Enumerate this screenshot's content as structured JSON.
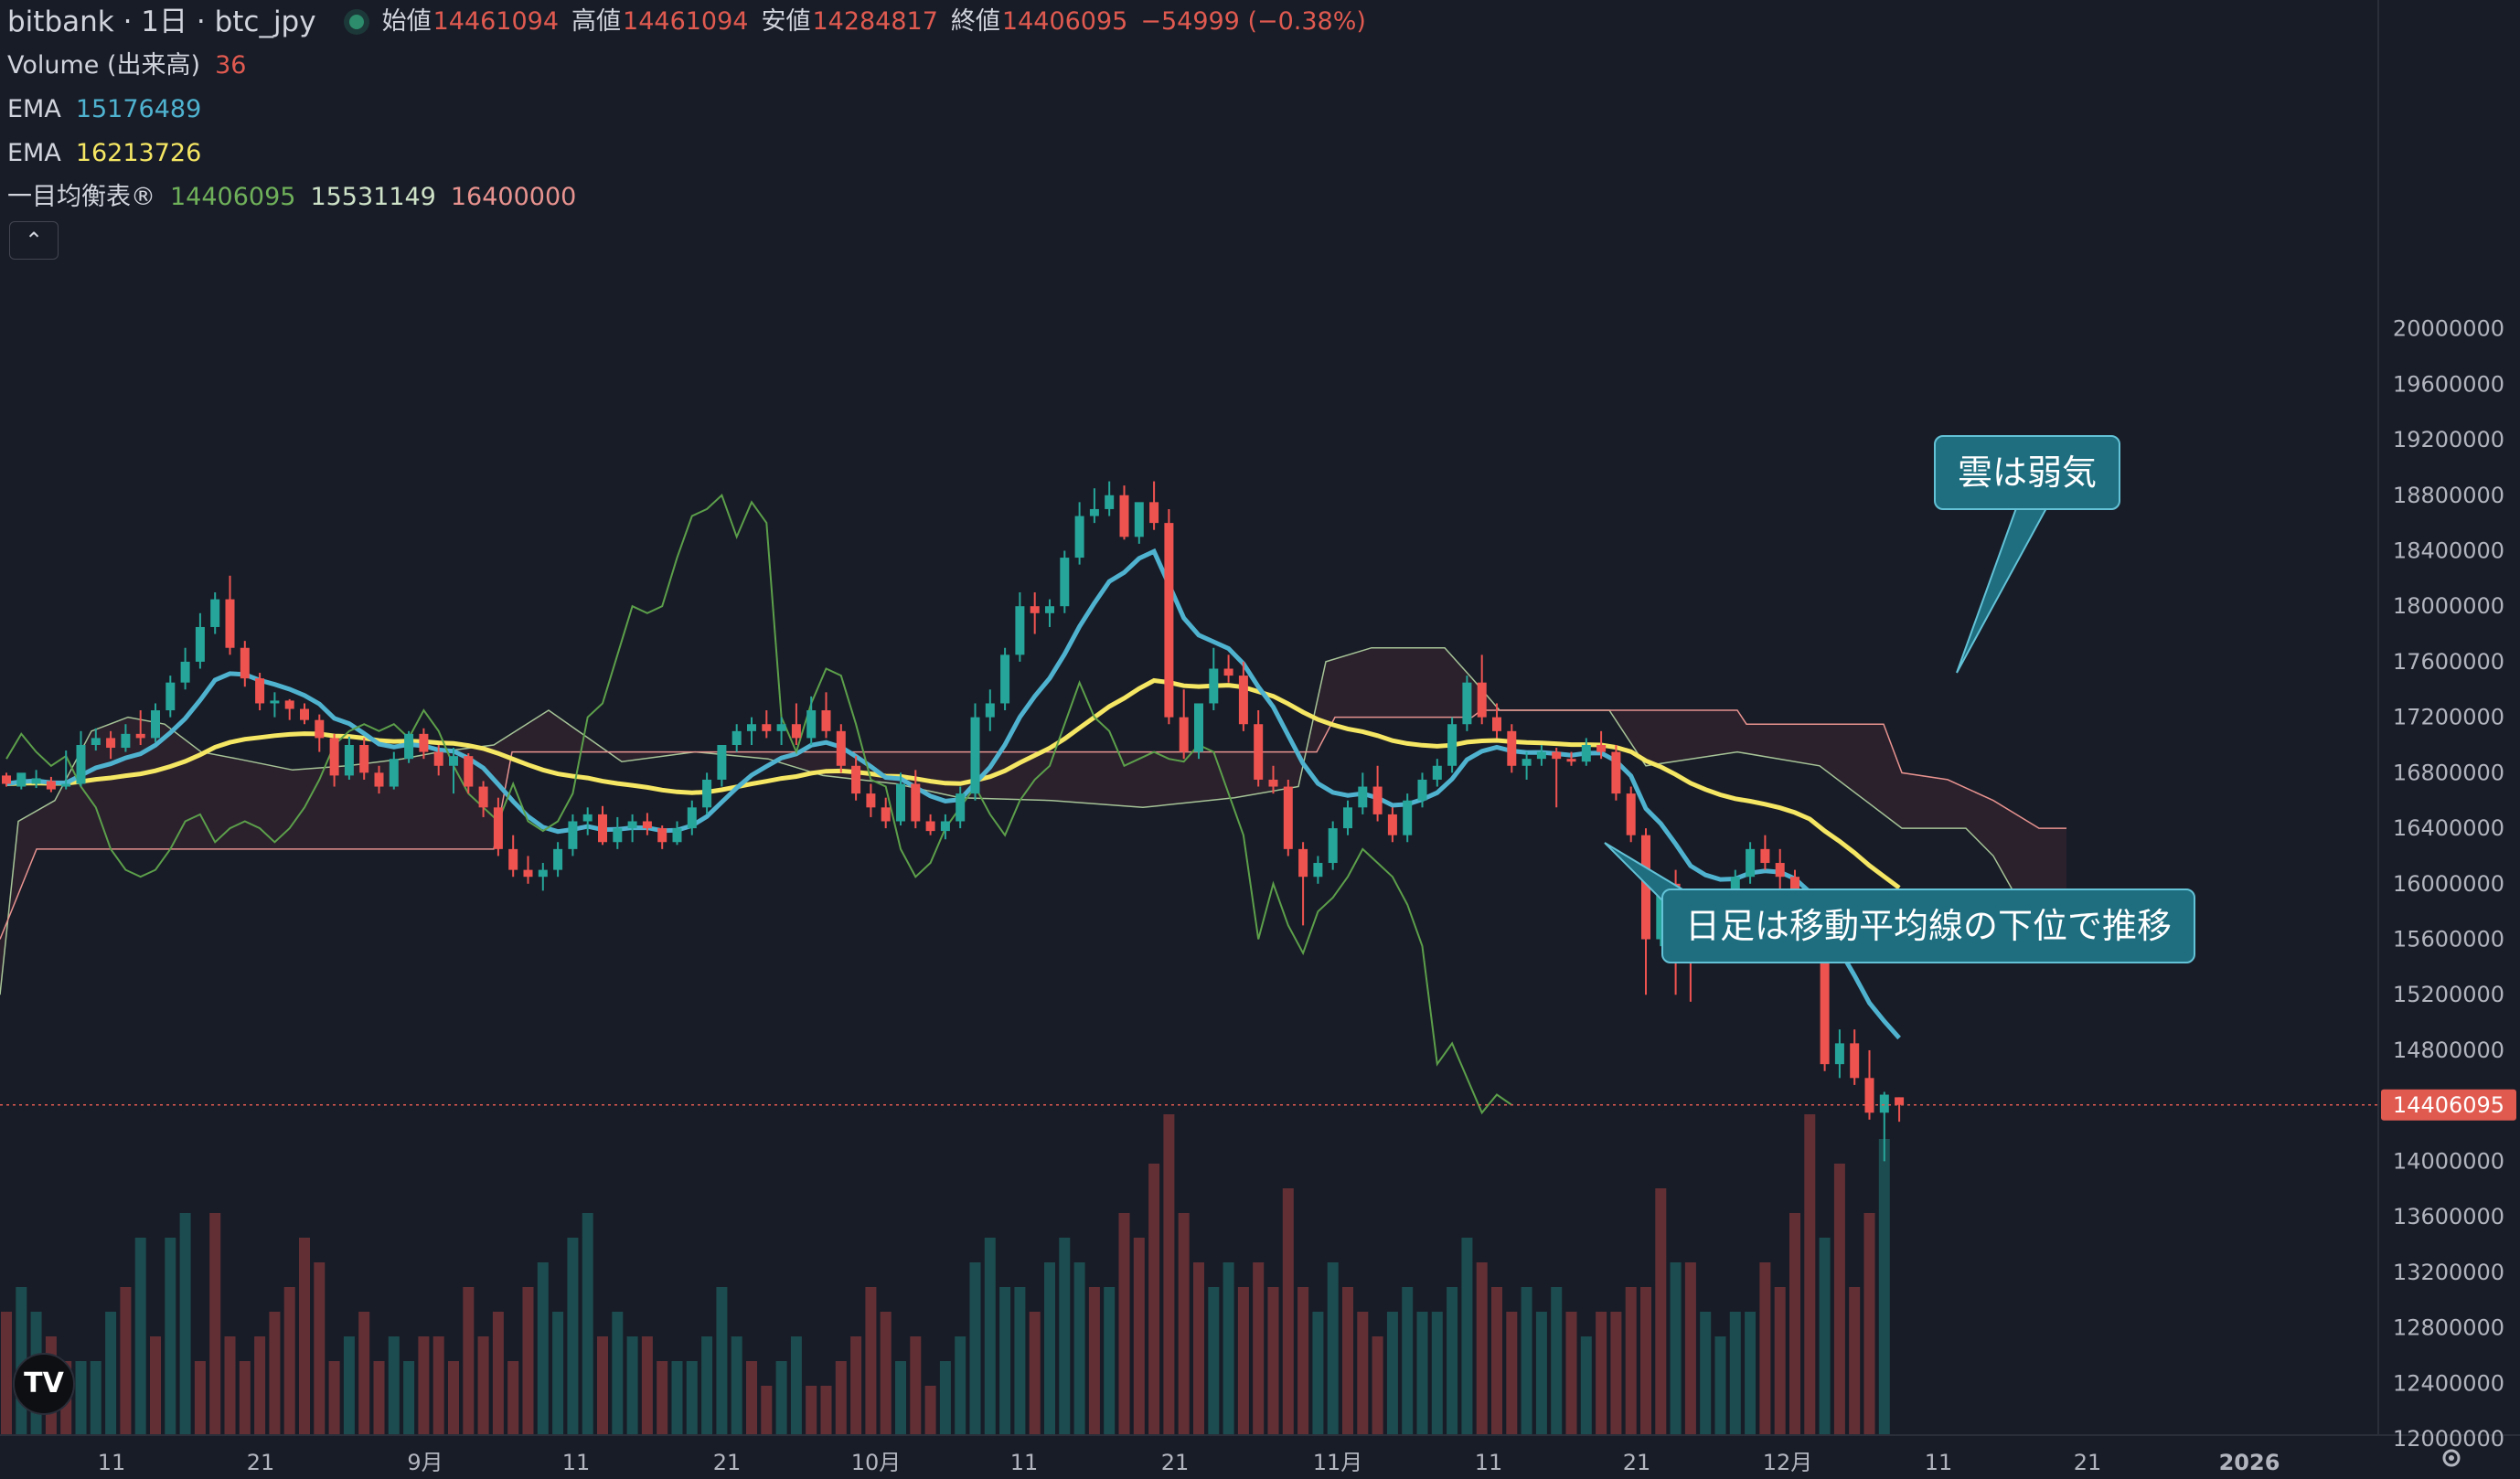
{
  "header": {
    "title": "bitbank · 1日 · btc_jpy",
    "ohlc": [
      {
        "label": "始値",
        "value": "14461094"
      },
      {
        "label": "高値",
        "value": "14461094"
      },
      {
        "label": "安値",
        "value": "14284817"
      },
      {
        "label": "終値",
        "value": "14406095"
      }
    ],
    "change": "−54999 (−0.38%)"
  },
  "indicators": {
    "volume": {
      "label": "Volume (出来高)",
      "value": "36"
    },
    "ema_fast": {
      "label": "EMA",
      "value": "15176489",
      "color": "#4fb3d0"
    },
    "ema_slow": {
      "label": "EMA",
      "value": "16213726",
      "color": "#f5e663"
    },
    "ichimoku": {
      "label": "一目均衡表®",
      "values": [
        "14406095",
        "15531149",
        "16400000"
      ]
    }
  },
  "annotations": {
    "cloud": "雲は弱気",
    "daily": "日足は移動平均線の下位で推移"
  },
  "price_tag": "14406095",
  "colors": {
    "up": "#26a69a",
    "down": "#ef5350",
    "ema_fast": "#4fb3d0",
    "ema_slow": "#f5e663",
    "chikou": "#5c9f4a",
    "background": "#181c27"
  },
  "chart_data": {
    "type": "candlestick",
    "y_axis": {
      "ticks": [
        20000000,
        19600000,
        19200000,
        18800000,
        18400000,
        18000000,
        17600000,
        17200000,
        16800000,
        16400000,
        16000000,
        15600000,
        15200000,
        14800000,
        14000000,
        13600000,
        13200000,
        12800000,
        12400000,
        12000000
      ],
      "ylim": [
        11900000,
        20050000
      ]
    },
    "x_axis": {
      "labels": [
        "11",
        "21",
        "9月",
        "11",
        "21",
        "10月",
        "11",
        "21",
        "11月",
        "11",
        "21",
        "12月",
        "11",
        "21",
        "2026"
      ]
    },
    "candles": [
      [
        16780000,
        16800000,
        16720000,
        16700000
      ],
      [
        16700000,
        16760000,
        16800000,
        16680000
      ],
      [
        16720000,
        16820000,
        16760000,
        16690000
      ],
      [
        16740000,
        16770000,
        16680000,
        16660000
      ],
      [
        16700000,
        16960000,
        16720000,
        16680000
      ],
      [
        16720000,
        17100000,
        17000000,
        16700000
      ],
      [
        17000000,
        17120000,
        17050000,
        16960000
      ],
      [
        17050000,
        17100000,
        16980000,
        16900000
      ],
      [
        16980000,
        17150000,
        17080000,
        16950000
      ],
      [
        17080000,
        17250000,
        17050000,
        17000000
      ],
      [
        17050000,
        17300000,
        17250000,
        17020000
      ],
      [
        17250000,
        17500000,
        17450000,
        17200000
      ],
      [
        17450000,
        17700000,
        17600000,
        17400000
      ],
      [
        17600000,
        17950000,
        17850000,
        17550000
      ],
      [
        17850000,
        18100000,
        18050000,
        17800000
      ],
      [
        18050000,
        18220000,
        17700000,
        17650000
      ],
      [
        17700000,
        17750000,
        17480000,
        17420000
      ],
      [
        17480000,
        17520000,
        17300000,
        17250000
      ],
      [
        17300000,
        17380000,
        17320000,
        17200000
      ],
      [
        17320000,
        17330000,
        17260000,
        17180000
      ],
      [
        17260000,
        17300000,
        17180000,
        17150000
      ],
      [
        17180000,
        17220000,
        17050000,
        16950000
      ],
      [
        17050000,
        17080000,
        16780000,
        16700000
      ],
      [
        16780000,
        17060000,
        17000000,
        16750000
      ],
      [
        17000000,
        17050000,
        16800000,
        16750000
      ],
      [
        16800000,
        16850000,
        16700000,
        16650000
      ],
      [
        16700000,
        16950000,
        16900000,
        16680000
      ],
      [
        16900000,
        17100000,
        17080000,
        16870000
      ],
      [
        17080000,
        17120000,
        16950000,
        16900000
      ],
      [
        16950000,
        17000000,
        16850000,
        16780000
      ],
      [
        16850000,
        16980000,
        16920000,
        16650000
      ],
      [
        16920000,
        16940000,
        16700000,
        16650000
      ],
      [
        16700000,
        16740000,
        16550000,
        16480000
      ],
      [
        16550000,
        16620000,
        16250000,
        16200000
      ],
      [
        16250000,
        16350000,
        16100000,
        16050000
      ],
      [
        16100000,
        16200000,
        16050000,
        16000000
      ],
      [
        16050000,
        16150000,
        16100000,
        15950000
      ],
      [
        16100000,
        16300000,
        16250000,
        16050000
      ],
      [
        16250000,
        16500000,
        16450000,
        16200000
      ],
      [
        16450000,
        16550000,
        16500000,
        16350000
      ],
      [
        16500000,
        16560000,
        16300000,
        16280000
      ],
      [
        16300000,
        16480000,
        16400000,
        16250000
      ],
      [
        16400000,
        16500000,
        16450000,
        16300000
      ],
      [
        16450000,
        16510000,
        16400000,
        16350000
      ],
      [
        16400000,
        16420000,
        16300000,
        16250000
      ],
      [
        16300000,
        16450000,
        16400000,
        16280000
      ],
      [
        16400000,
        16600000,
        16550000,
        16350000
      ],
      [
        16550000,
        16800000,
        16750000,
        16500000
      ],
      [
        16750000,
        16900000,
        17000000,
        16700000
      ],
      [
        17000000,
        17150000,
        17100000,
        16950000
      ],
      [
        17100000,
        17200000,
        17150000,
        17000000
      ],
      [
        17150000,
        17250000,
        17100000,
        17050000
      ],
      [
        17100000,
        17200000,
        17150000,
        17000000
      ],
      [
        17150000,
        17300000,
        17050000,
        17000000
      ],
      [
        17050000,
        17350000,
        17250000,
        17000000
      ],
      [
        17250000,
        17380000,
        17100000,
        17050000
      ],
      [
        17100000,
        17150000,
        16850000,
        16800000
      ],
      [
        16850000,
        16920000,
        16650000,
        16600000
      ],
      [
        16650000,
        16720000,
        16550000,
        16480000
      ],
      [
        16550000,
        16620000,
        16450000,
        16400000
      ],
      [
        16450000,
        16800000,
        16720000,
        16420000
      ],
      [
        16720000,
        16820000,
        16450000,
        16400000
      ],
      [
        16450000,
        16500000,
        16380000,
        16350000
      ],
      [
        16380000,
        16500000,
        16450000,
        16320000
      ],
      [
        16450000,
        16700000,
        16650000,
        16400000
      ],
      [
        16650000,
        17300000,
        17200000,
        16600000
      ],
      [
        17200000,
        17400000,
        17300000,
        17100000
      ],
      [
        17300000,
        17700000,
        17650000,
        17250000
      ],
      [
        17650000,
        18100000,
        18000000,
        17600000
      ],
      [
        18000000,
        18100000,
        17950000,
        17800000
      ],
      [
        17950000,
        18050000,
        18000000,
        17850000
      ],
      [
        18000000,
        18400000,
        18350000,
        17950000
      ],
      [
        18350000,
        18750000,
        18650000,
        18300000
      ],
      [
        18650000,
        18850000,
        18700000,
        18600000
      ],
      [
        18700000,
        18900000,
        18800000,
        18650000
      ],
      [
        18800000,
        18870000,
        18500000,
        18480000
      ],
      [
        18500000,
        18700000,
        18750000,
        18450000
      ],
      [
        18750000,
        18900000,
        18600000,
        18550000
      ],
      [
        18600000,
        18700000,
        17200000,
        17150000
      ],
      [
        17200000,
        17400000,
        16950000,
        16900000
      ],
      [
        16950000,
        17200000,
        17300000,
        16900000
      ],
      [
        17300000,
        17700000,
        17550000,
        17250000
      ],
      [
        17550000,
        17650000,
        17500000,
        17450000
      ],
      [
        17500000,
        17600000,
        17150000,
        17100000
      ],
      [
        17150000,
        17250000,
        16750000,
        16700000
      ],
      [
        16750000,
        16850000,
        16700000,
        16650000
      ],
      [
        16700000,
        16750000,
        16250000,
        16200000
      ],
      [
        16250000,
        16300000,
        16050000,
        15700000
      ],
      [
        16050000,
        16200000,
        16150000,
        16000000
      ],
      [
        16150000,
        16450000,
        16400000,
        16100000
      ],
      [
        16400000,
        16600000,
        16550000,
        16350000
      ],
      [
        16550000,
        16800000,
        16700000,
        16500000
      ],
      [
        16700000,
        16850000,
        16500000,
        16450000
      ],
      [
        16500000,
        16550000,
        16350000,
        16300000
      ],
      [
        16350000,
        16650000,
        16600000,
        16300000
      ],
      [
        16600000,
        16800000,
        16750000,
        16550000
      ],
      [
        16750000,
        16900000,
        16850000,
        16700000
      ],
      [
        16850000,
        17200000,
        17150000,
        16800000
      ],
      [
        17150000,
        17500000,
        17450000,
        17100000
      ],
      [
        17450000,
        17650000,
        17200000,
        17150000
      ],
      [
        17200000,
        17300000,
        17100000,
        17050000
      ],
      [
        17100000,
        17150000,
        16850000,
        16800000
      ],
      [
        16850000,
        16950000,
        16900000,
        16750000
      ],
      [
        16900000,
        17000000,
        16950000,
        16850000
      ],
      [
        16950000,
        16980000,
        16900000,
        16550000
      ],
      [
        16900000,
        16950000,
        16880000,
        16850000
      ],
      [
        16880000,
        17050000,
        17000000,
        16850000
      ],
      [
        17000000,
        17100000,
        16950000,
        16900000
      ],
      [
        16950000,
        17000000,
        16650000,
        16600000
      ],
      [
        16650000,
        16700000,
        16350000,
        16300000
      ],
      [
        16350000,
        16400000,
        15600000,
        15200000
      ],
      [
        15600000,
        16050000,
        16000000,
        15550000
      ],
      [
        16000000,
        16100000,
        15700000,
        15200000
      ],
      [
        15700000,
        15800000,
        15500000,
        15150000
      ],
      [
        15500000,
        15850000,
        15800000,
        15450000
      ],
      [
        15800000,
        15950000,
        15900000,
        15600000
      ],
      [
        15900000,
        16100000,
        16050000,
        15750000
      ],
      [
        16050000,
        16300000,
        16250000,
        16000000
      ],
      [
        16250000,
        16350000,
        16150000,
        16100000
      ],
      [
        16150000,
        16250000,
        16050000,
        15950000
      ],
      [
        16050000,
        16100000,
        15850000,
        15750000
      ],
      [
        15850000,
        15950000,
        15550000,
        15450000
      ],
      [
        15550000,
        15600000,
        14700000,
        14650000
      ],
      [
        14700000,
        14950000,
        14850000,
        14600000
      ],
      [
        14850000,
        14950000,
        14600000,
        14550000
      ],
      [
        14600000,
        14800000,
        14350000,
        14300000
      ],
      [
        14350000,
        14500000,
        14480000,
        14000000
      ],
      [
        14461094,
        14461094,
        14406095,
        14284817
      ]
    ],
    "volumes": [
      [
        5,
        0
      ],
      [
        6,
        1
      ],
      [
        5,
        1
      ],
      [
        4,
        0
      ],
      [
        3,
        0
      ],
      [
        3,
        1
      ],
      [
        3,
        1
      ],
      [
        5,
        1
      ],
      [
        6,
        0
      ],
      [
        8,
        1
      ],
      [
        4,
        0
      ],
      [
        8,
        1
      ],
      [
        9,
        1
      ],
      [
        3,
        0
      ],
      [
        9,
        0
      ],
      [
        4,
        0
      ],
      [
        3,
        0
      ],
      [
        4,
        0
      ],
      [
        5,
        0
      ],
      [
        6,
        0
      ],
      [
        8,
        0
      ],
      [
        7,
        0
      ],
      [
        3,
        0
      ],
      [
        4,
        1
      ],
      [
        5,
        0
      ],
      [
        3,
        0
      ],
      [
        4,
        1
      ],
      [
        3,
        1
      ],
      [
        4,
        0
      ],
      [
        4,
        0
      ],
      [
        3,
        0
      ],
      [
        6,
        0
      ],
      [
        4,
        0
      ],
      [
        5,
        0
      ],
      [
        3,
        0
      ],
      [
        6,
        0
      ],
      [
        7,
        1
      ],
      [
        5,
        1
      ],
      [
        8,
        1
      ],
      [
        9,
        1
      ],
      [
        4,
        0
      ],
      [
        5,
        1
      ],
      [
        4,
        1
      ],
      [
        4,
        0
      ],
      [
        3,
        0
      ],
      [
        3,
        1
      ],
      [
        3,
        1
      ],
      [
        4,
        1
      ],
      [
        6,
        1
      ],
      [
        4,
        1
      ],
      [
        3,
        0
      ],
      [
        2,
        0
      ],
      [
        3,
        1
      ],
      [
        4,
        1
      ],
      [
        2,
        0
      ],
      [
        2,
        0
      ],
      [
        3,
        0
      ],
      [
        4,
        0
      ],
      [
        6,
        0
      ],
      [
        5,
        0
      ],
      [
        3,
        1
      ],
      [
        4,
        0
      ],
      [
        2,
        0
      ],
      [
        3,
        1
      ],
      [
        4,
        1
      ],
      [
        7,
        1
      ],
      [
        8,
        1
      ],
      [
        6,
        1
      ],
      [
        6,
        1
      ],
      [
        5,
        0
      ],
      [
        7,
        1
      ],
      [
        8,
        1
      ],
      [
        7,
        1
      ],
      [
        6,
        0
      ],
      [
        6,
        1
      ],
      [
        9,
        0
      ],
      [
        8,
        0
      ],
      [
        11,
        0
      ],
      [
        13,
        0
      ],
      [
        9,
        0
      ],
      [
        7,
        0
      ],
      [
        6,
        1
      ],
      [
        7,
        1
      ],
      [
        6,
        0
      ],
      [
        7,
        0
      ],
      [
        6,
        0
      ],
      [
        10,
        0
      ],
      [
        6,
        0
      ],
      [
        5,
        1
      ],
      [
        7,
        1
      ],
      [
        6,
        0
      ],
      [
        5,
        0
      ],
      [
        4,
        0
      ],
      [
        5,
        1
      ],
      [
        6,
        1
      ],
      [
        5,
        1
      ],
      [
        5,
        1
      ],
      [
        6,
        1
      ],
      [
        8,
        1
      ],
      [
        7,
        0
      ],
      [
        6,
        0
      ],
      [
        5,
        0
      ],
      [
        6,
        1
      ],
      [
        5,
        1
      ],
      [
        6,
        1
      ],
      [
        5,
        0
      ],
      [
        4,
        1
      ],
      [
        5,
        0
      ],
      [
        5,
        0
      ],
      [
        6,
        0
      ],
      [
        6,
        0
      ],
      [
        10,
        0
      ],
      [
        7,
        1
      ],
      [
        7,
        0
      ],
      [
        5,
        1
      ],
      [
        4,
        1
      ],
      [
        5,
        1
      ],
      [
        5,
        1
      ],
      [
        7,
        0
      ],
      [
        6,
        0
      ],
      [
        9,
        0
      ],
      [
        13,
        0
      ],
      [
        8,
        1
      ],
      [
        11,
        0
      ],
      [
        6,
        0
      ],
      [
        9,
        0
      ],
      [
        12,
        1
      ]
    ]
  }
}
